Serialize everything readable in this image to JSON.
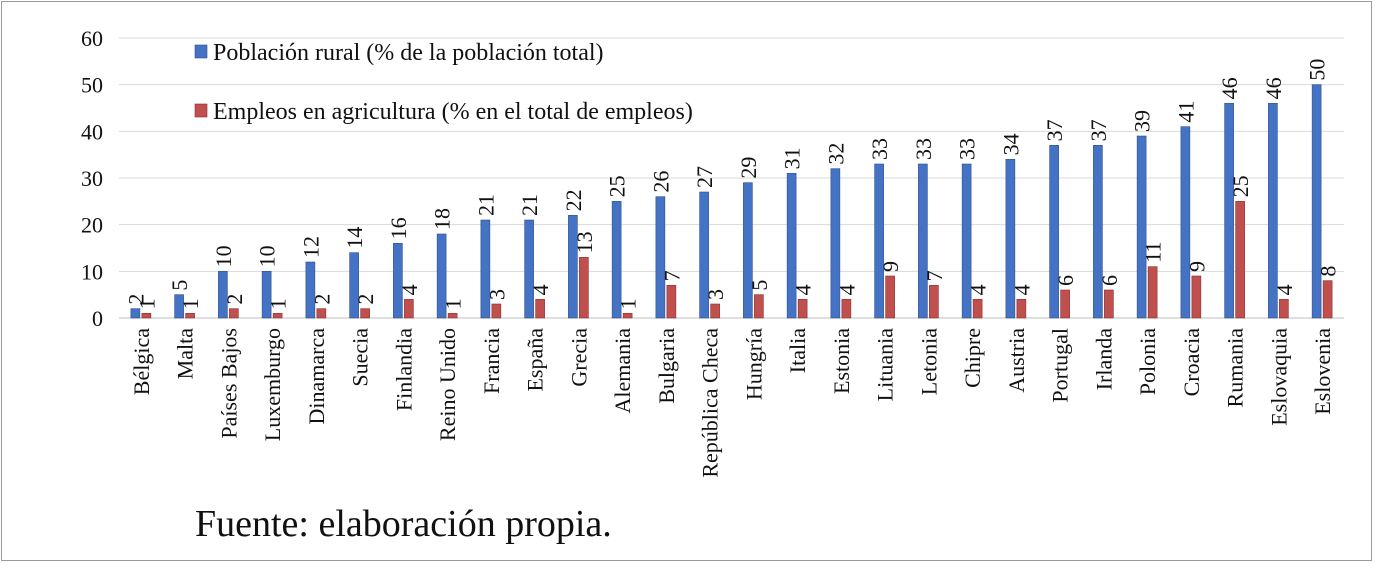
{
  "chart_data": {
    "type": "bar",
    "categories": [
      "Bélgica",
      "Malta",
      "Países Bajos",
      "Luxemburgo",
      "Dinamarca",
      "Suecia",
      "Finlandia",
      "Reino Unido",
      "Francia",
      "España",
      "Grecia",
      "Alemania",
      "Bulgaria",
      "República Checa",
      "Hungría",
      "Italia",
      "Estonia",
      "Lituania",
      "Letonia",
      "Chipre",
      "Austria",
      "Portugal",
      "Irlanda",
      "Polonia",
      "Croacia",
      "Rumania",
      "Eslovaquia",
      "Eslovenia"
    ],
    "series": [
      {
        "name": "Población rural (% de la población total)",
        "color": "#4472c4",
        "values": [
          2,
          5,
          10,
          10,
          12,
          14,
          16,
          18,
          21,
          21,
          22,
          25,
          26,
          27,
          29,
          31,
          32,
          33,
          33,
          33,
          34,
          37,
          37,
          39,
          41,
          46,
          46,
          50
        ]
      },
      {
        "name": "Empleos en agricultura (% en el total de empleos)",
        "color": "#c0504d",
        "values": [
          1,
          1,
          2,
          1,
          2,
          2,
          4,
          1,
          3,
          4,
          13,
          1,
          7,
          3,
          5,
          4,
          4,
          9,
          7,
          4,
          4,
          6,
          6,
          11,
          9,
          25,
          4,
          8
        ]
      }
    ],
    "ylim": [
      0,
      60
    ],
    "yticks": [
      0,
      10,
      20,
      30,
      40,
      50,
      60
    ],
    "grid": true,
    "legend": "top-left",
    "source": "Fuente: elaboración propia."
  }
}
